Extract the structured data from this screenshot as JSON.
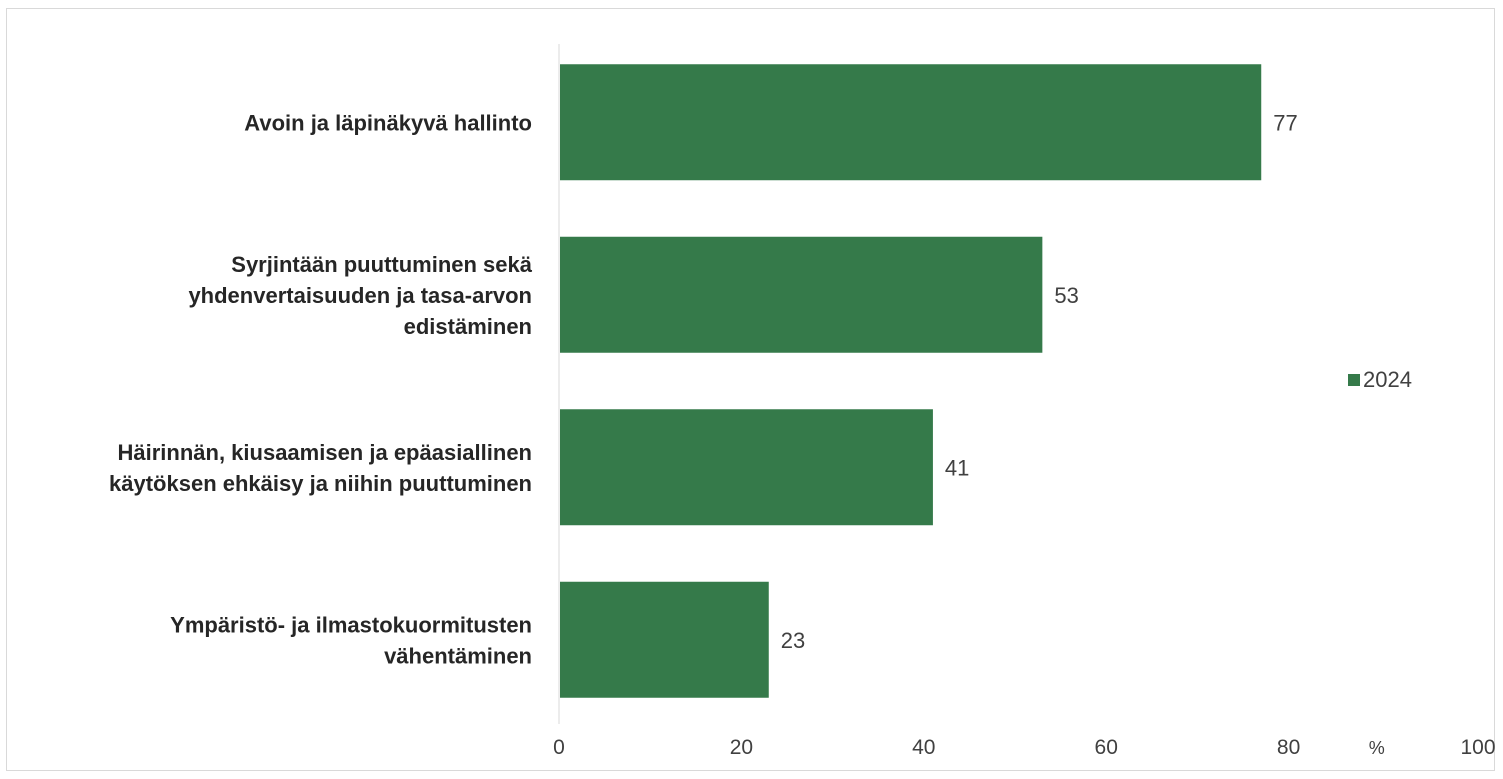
{
  "chart_data": {
    "type": "bar",
    "orientation": "horizontal",
    "categories": [
      [
        "Avoin ja läpinäkyvä hallinto"
      ],
      [
        "Syrjintään puuttuminen sekä",
        "yhdenvertaisuuden ja tasa-arvon",
        "edistäminen"
      ],
      [
        "Häirinnän, kiusaamisen ja epäasiallinen",
        "käytöksen ehkäisy ja niihin puuttuminen"
      ],
      [
        "Ympäristö- ja ilmastokuormitusten",
        "vähentäminen"
      ]
    ],
    "series": [
      {
        "name": "2024",
        "values": [
          77,
          53,
          41,
          23
        ],
        "color": "#357a4a"
      }
    ],
    "xlim": [
      0,
      100
    ],
    "xticks": [
      0,
      20,
      40,
      60,
      80,
      100
    ],
    "x_unit_label": "%",
    "grid": false,
    "legend_position": "right"
  }
}
